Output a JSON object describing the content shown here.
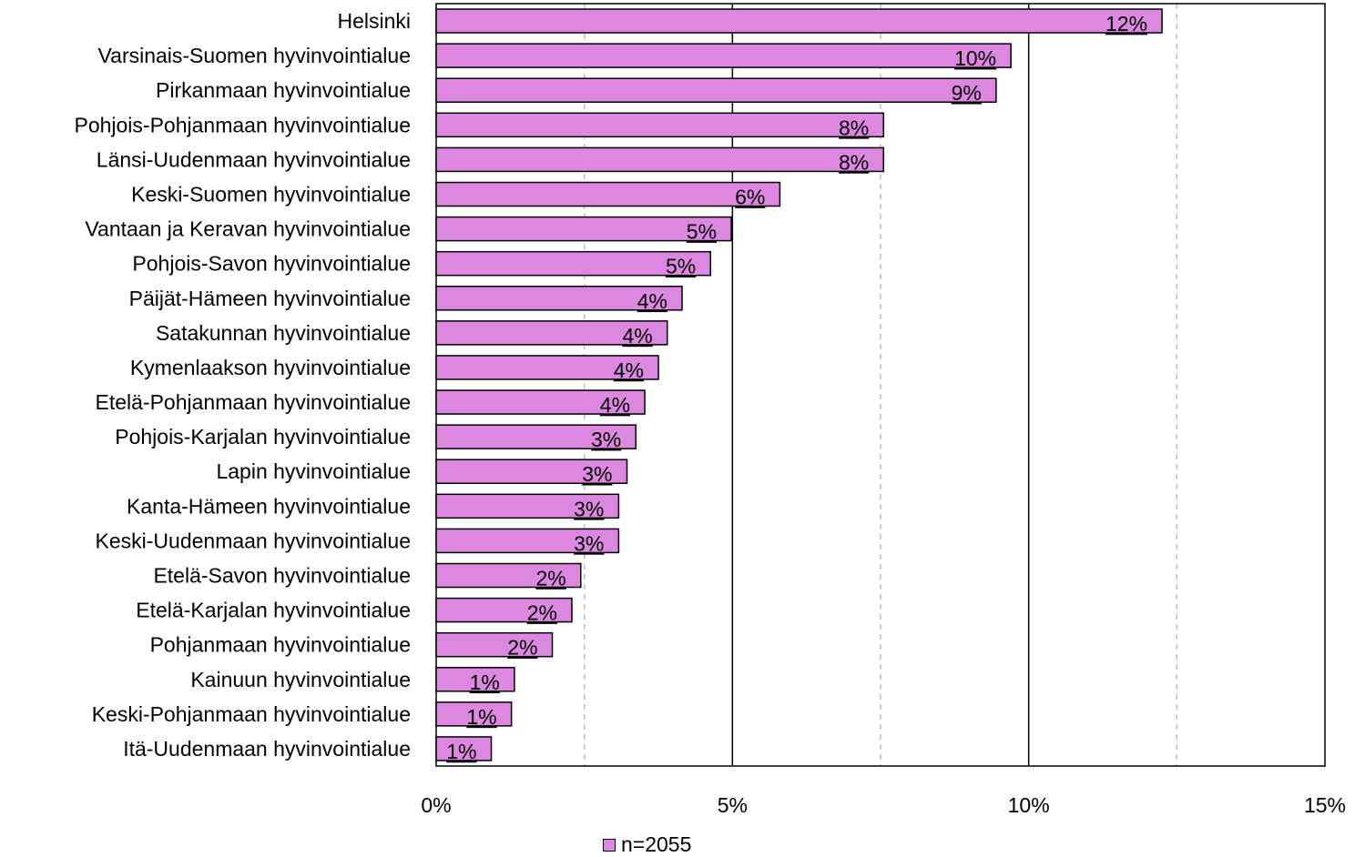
{
  "chart_data": {
    "type": "bar",
    "orientation": "horizontal",
    "categories": [
      "Helsinki",
      "Varsinais-Suomen hyvinvointialue",
      "Pirkanmaan hyvinvointialue",
      "Pohjois-Pohjanmaan hyvinvointialue",
      "Länsi-Uudenmaan hyvinvointialue",
      "Keski-Suomen hyvinvointialue",
      "Vantaan ja Keravan hyvinvointialue",
      "Pohjois-Savon hyvinvointialue",
      "Päijät-Hämeen hyvinvointialue",
      "Satakunnan hyvinvointialue",
      "Kymenlaakson hyvinvointialue",
      "Etelä-Pohjanmaan hyvinvointialue",
      "Pohjois-Karjalan hyvinvointialue",
      "Lapin hyvinvointialue",
      "Kanta-Hämeen hyvinvointialue",
      "Keski-Uudenmaan hyvinvointialue",
      "Etelä-Savon hyvinvointialue",
      "Etelä-Karjalan hyvinvointialue",
      "Pohjanmaan hyvinvointialue",
      "Kainuun hyvinvointialue",
      "Keski-Pohjanmaan hyvinvointialue",
      "Itä-Uudenmaan hyvinvointialue"
    ],
    "series": [
      {
        "name": "n=2055",
        "values": [
          12.25,
          9.7,
          9.45,
          7.55,
          7.55,
          5.8,
          4.98,
          4.63,
          4.15,
          3.9,
          3.75,
          3.52,
          3.37,
          3.22,
          3.08,
          3.08,
          2.44,
          2.29,
          1.96,
          1.32,
          1.27,
          0.93
        ],
        "labels": [
          "12%",
          "10%",
          "9%",
          "8%",
          "8%",
          "6%",
          "5%",
          "5%",
          "4%",
          "4%",
          "4%",
          "4%",
          "3%",
          "3%",
          "3%",
          "3%",
          "2%",
          "2%",
          "2%",
          "1%",
          "1%",
          "1%"
        ]
      }
    ],
    "xlim": [
      0,
      15
    ],
    "x_ticks": [
      "0%",
      "5%",
      "10%",
      "15%"
    ],
    "grid": "vertical",
    "legend_position": "bottom",
    "bar_color": "#dc88e0",
    "bar_edge_color": "#000000"
  }
}
